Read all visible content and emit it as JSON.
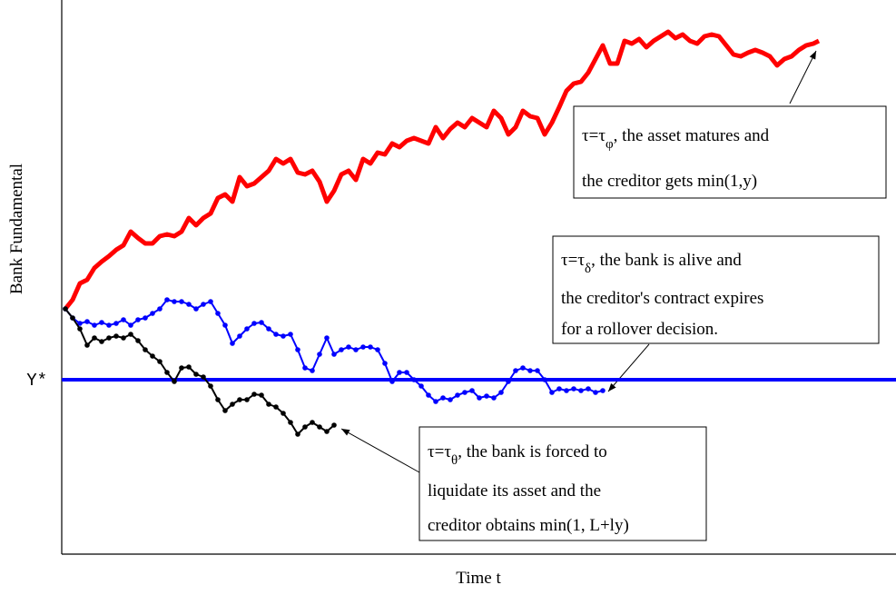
{
  "chart_data": {
    "type": "line",
    "xlabel": "Time t",
    "ylabel": "Bank Fundamental",
    "xlim": [
      0,
      919
    ],
    "ylim": [
      0,
      610
    ],
    "yticks": [
      {
        "value": 192,
        "label": "Y*"
      }
    ],
    "threshold_color": "#0000ff",
    "series": [
      {
        "name": "asset matures",
        "color": "#ff0000",
        "markers": false,
        "x": [
          4,
          12,
          20,
          28,
          36,
          44,
          52,
          60,
          68,
          76,
          84,
          92,
          100,
          108,
          116,
          124,
          132,
          140,
          148,
          156,
          164,
          172,
          180,
          188,
          196,
          204,
          212,
          220,
          228,
          236,
          244,
          252,
          260,
          268,
          276,
          284,
          292,
          300,
          308,
          316,
          324,
          332,
          340,
          348,
          356,
          364,
          372,
          380,
          388,
          396,
          404,
          412,
          420,
          428,
          436,
          444,
          452,
          460,
          468,
          476,
          484,
          492,
          500,
          508,
          516,
          524,
          532,
          540,
          548,
          556,
          564,
          572,
          580,
          588,
          596,
          604,
          612,
          620,
          628,
          636,
          644,
          652,
          660,
          668,
          676,
          684,
          692,
          700,
          708,
          716,
          724,
          732,
          740,
          748,
          756,
          764,
          772,
          780,
          788,
          796,
          804,
          812,
          820,
          828,
          834
        ],
        "values": [
          270,
          280,
          298,
          302,
          315,
          322,
          328,
          335,
          340,
          355,
          348,
          342,
          342,
          350,
          352,
          350,
          355,
          370,
          362,
          370,
          375,
          392,
          396,
          388,
          415,
          405,
          408,
          415,
          422,
          435,
          430,
          435,
          420,
          418,
          422,
          410,
          388,
          400,
          418,
          422,
          412,
          435,
          430,
          442,
          440,
          452,
          448,
          455,
          458,
          455,
          452,
          470,
          458,
          468,
          475,
          470,
          480,
          475,
          470,
          488,
          480,
          462,
          470,
          488,
          482,
          480,
          462,
          475,
          492,
          510,
          518,
          520,
          530,
          545,
          560,
          540,
          540,
          565,
          562,
          567,
          558,
          565,
          570,
          575,
          568,
          572,
          565,
          562,
          570,
          572,
          570,
          560,
          550,
          548,
          552,
          555,
          552,
          548,
          538,
          545,
          548,
          555,
          560,
          562,
          565
        ]
      },
      {
        "name": "contract expires",
        "color": "#0000ff",
        "markers": true,
        "x": [
          4,
          12,
          20,
          28,
          36,
          44,
          52,
          60,
          68,
          76,
          84,
          92,
          100,
          108,
          116,
          124,
          132,
          140,
          148,
          156,
          164,
          172,
          180,
          188,
          196,
          204,
          212,
          220,
          228,
          236,
          244,
          252,
          260,
          268,
          276,
          284,
          292,
          300,
          308,
          316,
          324,
          332,
          340,
          348,
          356,
          364,
          372,
          380,
          388,
          396,
          404,
          412,
          420,
          428,
          436,
          444,
          452,
          460,
          468,
          476,
          484,
          492,
          500,
          508,
          516,
          524,
          532,
          540,
          548,
          556,
          564,
          572,
          580,
          588,
          596
        ],
        "values": [
          270,
          260,
          254,
          256,
          252,
          255,
          252,
          254,
          258,
          252,
          258,
          260,
          265,
          270,
          280,
          278,
          278,
          275,
          270,
          275,
          278,
          265,
          252,
          232,
          240,
          248,
          254,
          255,
          248,
          242,
          240,
          242,
          225,
          205,
          202,
          220,
          238,
          220,
          225,
          228,
          225,
          228,
          228,
          225,
          210,
          190,
          200,
          200,
          192,
          185,
          175,
          168,
          172,
          170,
          175,
          178,
          180,
          172,
          174,
          172,
          178,
          190,
          202,
          205,
          202,
          202,
          192,
          178,
          182,
          180,
          182,
          180,
          182,
          178,
          180
        ]
      },
      {
        "name": "forced liquidation",
        "color": "#000000",
        "markers": true,
        "x": [
          4,
          12,
          20,
          28,
          36,
          44,
          52,
          60,
          68,
          76,
          84,
          92,
          100,
          108,
          116,
          124,
          132,
          140,
          148,
          156,
          164,
          172,
          180,
          188,
          196,
          204,
          212,
          220,
          228,
          236,
          244,
          252,
          260,
          268,
          276,
          284,
          292,
          300
        ],
        "values": [
          270,
          260,
          248,
          230,
          238,
          234,
          238,
          240,
          238,
          242,
          235,
          225,
          218,
          212,
          200,
          190,
          205,
          206,
          198,
          195,
          185,
          170,
          158,
          165,
          170,
          170,
          176,
          175,
          165,
          162,
          155,
          145,
          132,
          140,
          145,
          140,
          135,
          142
        ]
      }
    ],
    "annotations": [
      {
        "lines": [
          [
            {
              "t": "τ=τ"
            },
            {
              "t": "φ",
              "sub": true
            },
            {
              "t": ", the asset matures and"
            }
          ],
          [
            {
              "t": "the creditor gets min(1,y)"
            }
          ]
        ]
      },
      {
        "lines": [
          [
            {
              "t": "τ=τ"
            },
            {
              "t": "δ",
              "sub": true
            },
            {
              "t": ", the bank is alive and"
            }
          ],
          [
            {
              "t": "the creditor's contract expires"
            }
          ],
          [
            {
              "t": "for a rollover decision."
            }
          ]
        ]
      },
      {
        "lines": [
          [
            {
              "t": "τ=τ"
            },
            {
              "t": "θ",
              "sub": true
            },
            {
              "t": ", the bank is forced to"
            }
          ],
          [
            {
              "t": "liquidate its asset and the"
            }
          ],
          [
            {
              "t": "creditor obtains min(1, L+ly)"
            }
          ]
        ]
      }
    ]
  }
}
